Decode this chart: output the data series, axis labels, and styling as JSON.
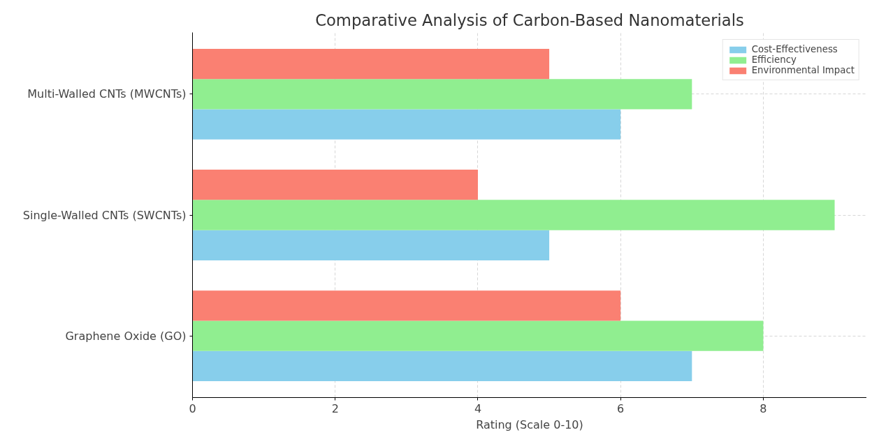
{
  "chart_data": {
    "type": "bar",
    "orientation": "horizontal",
    "title": "Comparative Analysis of Carbon-Based Nanomaterials",
    "xlabel": "Rating (Scale 0-10)",
    "categories": [
      "Multi-Walled CNTs (MWCNTs)",
      "Single-Walled CNTs (SWCNTs)",
      "Graphene Oxide (GO)"
    ],
    "series": [
      {
        "name": "Cost-Effectiveness",
        "color": "#87ceeb",
        "values": [
          6,
          5,
          7
        ]
      },
      {
        "name": "Efficiency",
        "color": "#90ee90",
        "values": [
          7,
          9,
          8
        ]
      },
      {
        "name": "Environmental Impact",
        "color": "#fa8072",
        "values": [
          5,
          4,
          6
        ]
      }
    ],
    "xlim": [
      0,
      9.45
    ],
    "xticks": [
      0,
      2,
      4,
      6,
      8
    ],
    "grid": true,
    "legend": "top right"
  }
}
